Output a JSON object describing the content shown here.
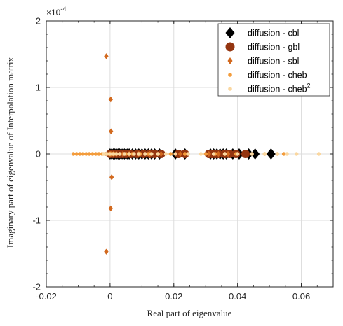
{
  "chart_data": {
    "type": "scatter",
    "xlabel": "Real part of eigenvalue",
    "ylabel": "Imaginary part of eigenvalue of Interpolation matrix",
    "y_exponent_label": "×10",
    "y_exponent_power": "-4",
    "xlim": [
      -0.02,
      0.07
    ],
    "ylim": [
      -2,
      2
    ],
    "y_scale_factor": 0.0001,
    "x_ticks": [
      -0.02,
      0,
      0.02,
      0.04,
      0.06
    ],
    "x_tick_labels": [
      "-0.02",
      "0",
      "0.02",
      "0.04",
      "0.06"
    ],
    "y_ticks": [
      -2,
      -1,
      0,
      1,
      2
    ],
    "y_tick_labels": [
      "-2",
      "-1",
      "0",
      "1",
      "2"
    ],
    "grid": true,
    "legend_position": "top-right",
    "series": [
      {
        "name": "diffusion - cbl",
        "marker": "diamond",
        "color": "#000000",
        "x": [
          0.0,
          0.0005,
          0.001,
          0.0015,
          0.002,
          0.0025,
          0.003,
          0.0035,
          0.004,
          0.0045,
          0.005,
          0.0055,
          0.006,
          0.007,
          0.008,
          0.009,
          0.01,
          0.011,
          0.012,
          0.013,
          0.014,
          0.0155,
          0.0205,
          0.0235,
          0.0315,
          0.0325,
          0.0335,
          0.0345,
          0.0355,
          0.0365,
          0.0385,
          0.0405,
          0.0435,
          0.0455,
          0.0505
        ],
        "y": [
          0,
          0,
          0,
          0,
          0,
          0,
          0,
          0,
          0,
          0,
          0,
          0,
          0,
          0,
          0,
          0,
          0,
          0,
          0,
          0,
          0,
          0,
          0,
          0,
          0,
          0,
          0,
          0,
          0,
          0,
          0,
          0,
          0,
          0,
          0
        ]
      },
      {
        "name": "diffusion - gbl",
        "marker": "circle",
        "color": "#943510",
        "x": [
          0.0,
          0.001,
          0.002,
          0.003,
          0.004,
          0.005,
          0.0065,
          0.0085,
          0.0105,
          0.0125,
          0.014,
          0.016,
          0.0215,
          0.0235,
          0.031,
          0.032,
          0.033,
          0.034,
          0.036,
          0.0375,
          0.0395,
          0.0425
        ],
        "y": [
          0,
          0,
          0,
          0,
          0,
          0,
          0,
          0,
          0,
          0,
          0,
          0,
          0,
          0,
          0,
          0,
          0,
          0,
          0,
          0,
          0,
          0
        ]
      },
      {
        "name": "diffusion - sbl",
        "marker": "diamond",
        "color": "#D2691E",
        "x": [
          -0.0012,
          0.0002,
          0.0003,
          0.0002,
          0.0,
          0.0005,
          0.001,
          0.002,
          0.004,
          0.006,
          0.009,
          0.0125,
          0.016,
          0.022,
          0.031,
          0.034,
          0.037,
          0.0005,
          0.0002,
          -0.0012
        ],
        "y": [
          1.47,
          0.82,
          0.34,
          0,
          0,
          0,
          0,
          0,
          0,
          0,
          0,
          0,
          0,
          0,
          0,
          0,
          0,
          -0.35,
          -0.82,
          -1.47
        ]
      },
      {
        "name": "diffusion - cheb",
        "marker": "dot",
        "color": "#F39C3C",
        "x": [
          -0.0115,
          -0.0105,
          -0.0095,
          -0.0085,
          -0.0075,
          -0.0065,
          -0.0055,
          -0.0045,
          -0.0035,
          -0.0025,
          -0.0015,
          -0.0005,
          0.0005,
          0.0015,
          0.003,
          0.005,
          0.007,
          0.0095,
          0.012,
          0.015,
          0.019,
          0.0235,
          0.03,
          0.033,
          0.036,
          0.0395,
          0.0445,
          0.0485,
          0.0525,
          0.0545
        ],
        "y": [
          0,
          0,
          0,
          0,
          0,
          0,
          0,
          0,
          0,
          0,
          0,
          0,
          0,
          0,
          0,
          0,
          0,
          0,
          0,
          0,
          0,
          0,
          0,
          0,
          0,
          0,
          0,
          0,
          0,
          0
        ]
      },
      {
        "name": "diffusion - cheb",
        "name_superscript": "2",
        "marker": "dot",
        "color": "#FAD7A0",
        "x": [
          -0.002,
          -0.001,
          0.0,
          0.001,
          0.002,
          0.003,
          0.0045,
          0.006,
          0.0075,
          0.009,
          0.011,
          0.013,
          0.015,
          0.0175,
          0.0205,
          0.0245,
          0.0285,
          0.0325,
          0.036,
          0.04,
          0.0445,
          0.0485,
          0.0525,
          0.0555,
          0.0585,
          0.0655
        ],
        "y": [
          0,
          0,
          0,
          0,
          0,
          0,
          0,
          0,
          0,
          0,
          0,
          0,
          0,
          0,
          0,
          0,
          0,
          0,
          0,
          0,
          0,
          0,
          0,
          0,
          0,
          0
        ]
      }
    ]
  }
}
